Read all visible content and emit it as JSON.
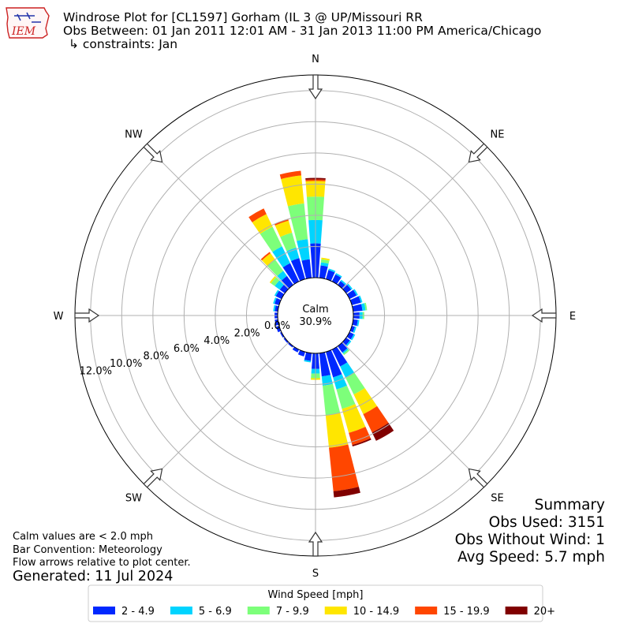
{
  "header": {
    "title": "Windrose Plot for [CL1597] Gorham  (IL 3 @ UP/Missouri RR",
    "subtitle": "Obs Between: 01 Jan 2011 12:01 AM - 31 Jan 2013 11:00 PM America/Chicago",
    "constraints": "↳ constraints: Jan",
    "logo_text": "IEM"
  },
  "footer_notes": {
    "line1": "Calm values are < 2.0 mph",
    "line2": "Bar Convention: Meteorology",
    "line3": "Flow arrows relative to plot center.",
    "generated": "Generated: 11 Jul 2024"
  },
  "summary": {
    "heading": "Summary",
    "obs_used": "Obs Used: 3151",
    "obs_without_wind": "Obs Without Wind: 1",
    "avg_speed": "Avg Speed: 5.7 mph"
  },
  "colors": {
    "logo_red": "#cc2222",
    "logo_blue": "#2233aa",
    "grid": "#b0b0b0"
  },
  "chart_data": {
    "type": "windrose",
    "calm_label": "Calm",
    "calm_value": "30.9%",
    "radial_ticks": [
      {
        "value": 0,
        "label": "0.0%"
      },
      {
        "value": 2,
        "label": "2.0%"
      },
      {
        "value": 4,
        "label": "4.0%"
      },
      {
        "value": 6,
        "label": "6.0%"
      },
      {
        "value": 8,
        "label": "8.0%"
      },
      {
        "value": 10,
        "label": "10.0%"
      },
      {
        "value": 12,
        "label": "12.0%"
      }
    ],
    "rmax": 13,
    "compass_labels": [
      {
        "label": "N",
        "deg": 0
      },
      {
        "label": "NE",
        "deg": 45
      },
      {
        "label": "E",
        "deg": 90
      },
      {
        "label": "SE",
        "deg": 135
      },
      {
        "label": "S",
        "deg": 180
      },
      {
        "label": "SW",
        "deg": 225
      },
      {
        "label": "W",
        "deg": 270
      },
      {
        "label": "NW",
        "deg": 315
      }
    ],
    "arrow_directions_deg": [
      0,
      45,
      90,
      135,
      180,
      225,
      270,
      315
    ],
    "legend_title": "Wind Speed [mph]",
    "bins": [
      {
        "label": "2 - 4.9",
        "color": "#0028ff"
      },
      {
        "label": "5 - 6.9",
        "color": "#00d4ff"
      },
      {
        "label": "7 - 9.9",
        "color": "#7dff7a"
      },
      {
        "label": "10 - 14.9",
        "color": "#ffe600"
      },
      {
        "label": "15 - 19.9",
        "color": "#ff4600"
      },
      {
        "label": "20+",
        "color": "#800000"
      }
    ],
    "directions_deg": [
      0,
      10,
      20,
      30,
      40,
      50,
      60,
      70,
      80,
      90,
      100,
      110,
      120,
      130,
      140,
      150,
      160,
      170,
      180,
      190,
      200,
      210,
      220,
      230,
      240,
      250,
      260,
      270,
      280,
      290,
      300,
      310,
      320,
      330,
      340,
      350
    ],
    "cumulative_percent": [
      [
        2.2,
        3.7,
        5.2,
        6.2,
        6.3,
        6.4
      ],
      [
        0.8,
        1.0,
        1.2,
        1.3,
        1.3,
        1.3
      ],
      [
        0.6,
        0.7,
        0.7,
        0.7,
        0.7,
        0.7
      ],
      [
        0.5,
        0.6,
        0.6,
        0.6,
        0.6,
        0.6
      ],
      [
        0.3,
        0.4,
        0.4,
        0.4,
        0.4,
        0.4
      ],
      [
        0.4,
        0.5,
        0.5,
        0.5,
        0.5,
        0.5
      ],
      [
        0.5,
        0.6,
        0.6,
        0.6,
        0.6,
        0.6
      ],
      [
        0.6,
        0.7,
        0.7,
        0.7,
        0.7,
        0.7
      ],
      [
        0.6,
        0.8,
        0.9,
        0.9,
        0.9,
        0.9
      ],
      [
        0.4,
        0.6,
        0.7,
        0.7,
        0.7,
        0.7
      ],
      [
        0.3,
        0.4,
        0.4,
        0.4,
        0.4,
        0.4
      ],
      [
        0.2,
        0.3,
        0.3,
        0.3,
        0.3,
        0.3
      ],
      [
        0.3,
        0.4,
        0.4,
        0.4,
        0.4,
        0.4
      ],
      [
        0.3,
        0.4,
        0.4,
        0.4,
        0.4,
        0.4
      ],
      [
        0.5,
        0.6,
        0.7,
        0.7,
        0.7,
        0.7
      ],
      [
        1.2,
        2.0,
        3.2,
        4.6,
        5.9,
        6.5
      ],
      [
        1.7,
        2.5,
        3.8,
        5.4,
        6.2,
        6.3
      ],
      [
        1.5,
        2.1,
        4.0,
        6.1,
        8.9,
        9.3
      ],
      [
        1.0,
        1.3,
        1.6,
        1.7,
        1.7,
        1.7
      ],
      [
        0.5,
        0.6,
        0.6,
        0.6,
        0.6,
        0.6
      ],
      [
        0.3,
        0.3,
        0.3,
        0.3,
        0.3,
        0.3
      ],
      [
        0.2,
        0.2,
        0.2,
        0.2,
        0.2,
        0.2
      ],
      [
        0.1,
        0.1,
        0.1,
        0.1,
        0.1,
        0.1
      ],
      [
        0.1,
        0.1,
        0.1,
        0.1,
        0.1,
        0.1
      ],
      [
        0.1,
        0.1,
        0.1,
        0.1,
        0.1,
        0.1
      ],
      [
        0.2,
        0.2,
        0.2,
        0.2,
        0.2,
        0.2
      ],
      [
        0.2,
        0.2,
        0.2,
        0.2,
        0.2,
        0.2
      ],
      [
        0.2,
        0.2,
        0.2,
        0.2,
        0.2,
        0.2
      ],
      [
        0.2,
        0.3,
        0.3,
        0.3,
        0.3,
        0.3
      ],
      [
        0.3,
        0.4,
        0.4,
        0.4,
        0.4,
        0.4
      ],
      [
        0.4,
        0.5,
        0.5,
        0.5,
        0.5,
        0.5
      ],
      [
        0.4,
        0.8,
        1.1,
        1.2,
        1.2,
        1.2
      ],
      [
        0.7,
        1.1,
        2.0,
        2.5,
        2.6,
        2.6
      ],
      [
        1.3,
        2.5,
        3.9,
        4.8,
        5.2,
        5.2
      ],
      [
        1.4,
        2.1,
        3.1,
        3.9,
        4.0,
        4.0
      ],
      [
        1.2,
        2.5,
        4.8,
        6.6,
        6.9,
        6.9
      ]
    ]
  }
}
